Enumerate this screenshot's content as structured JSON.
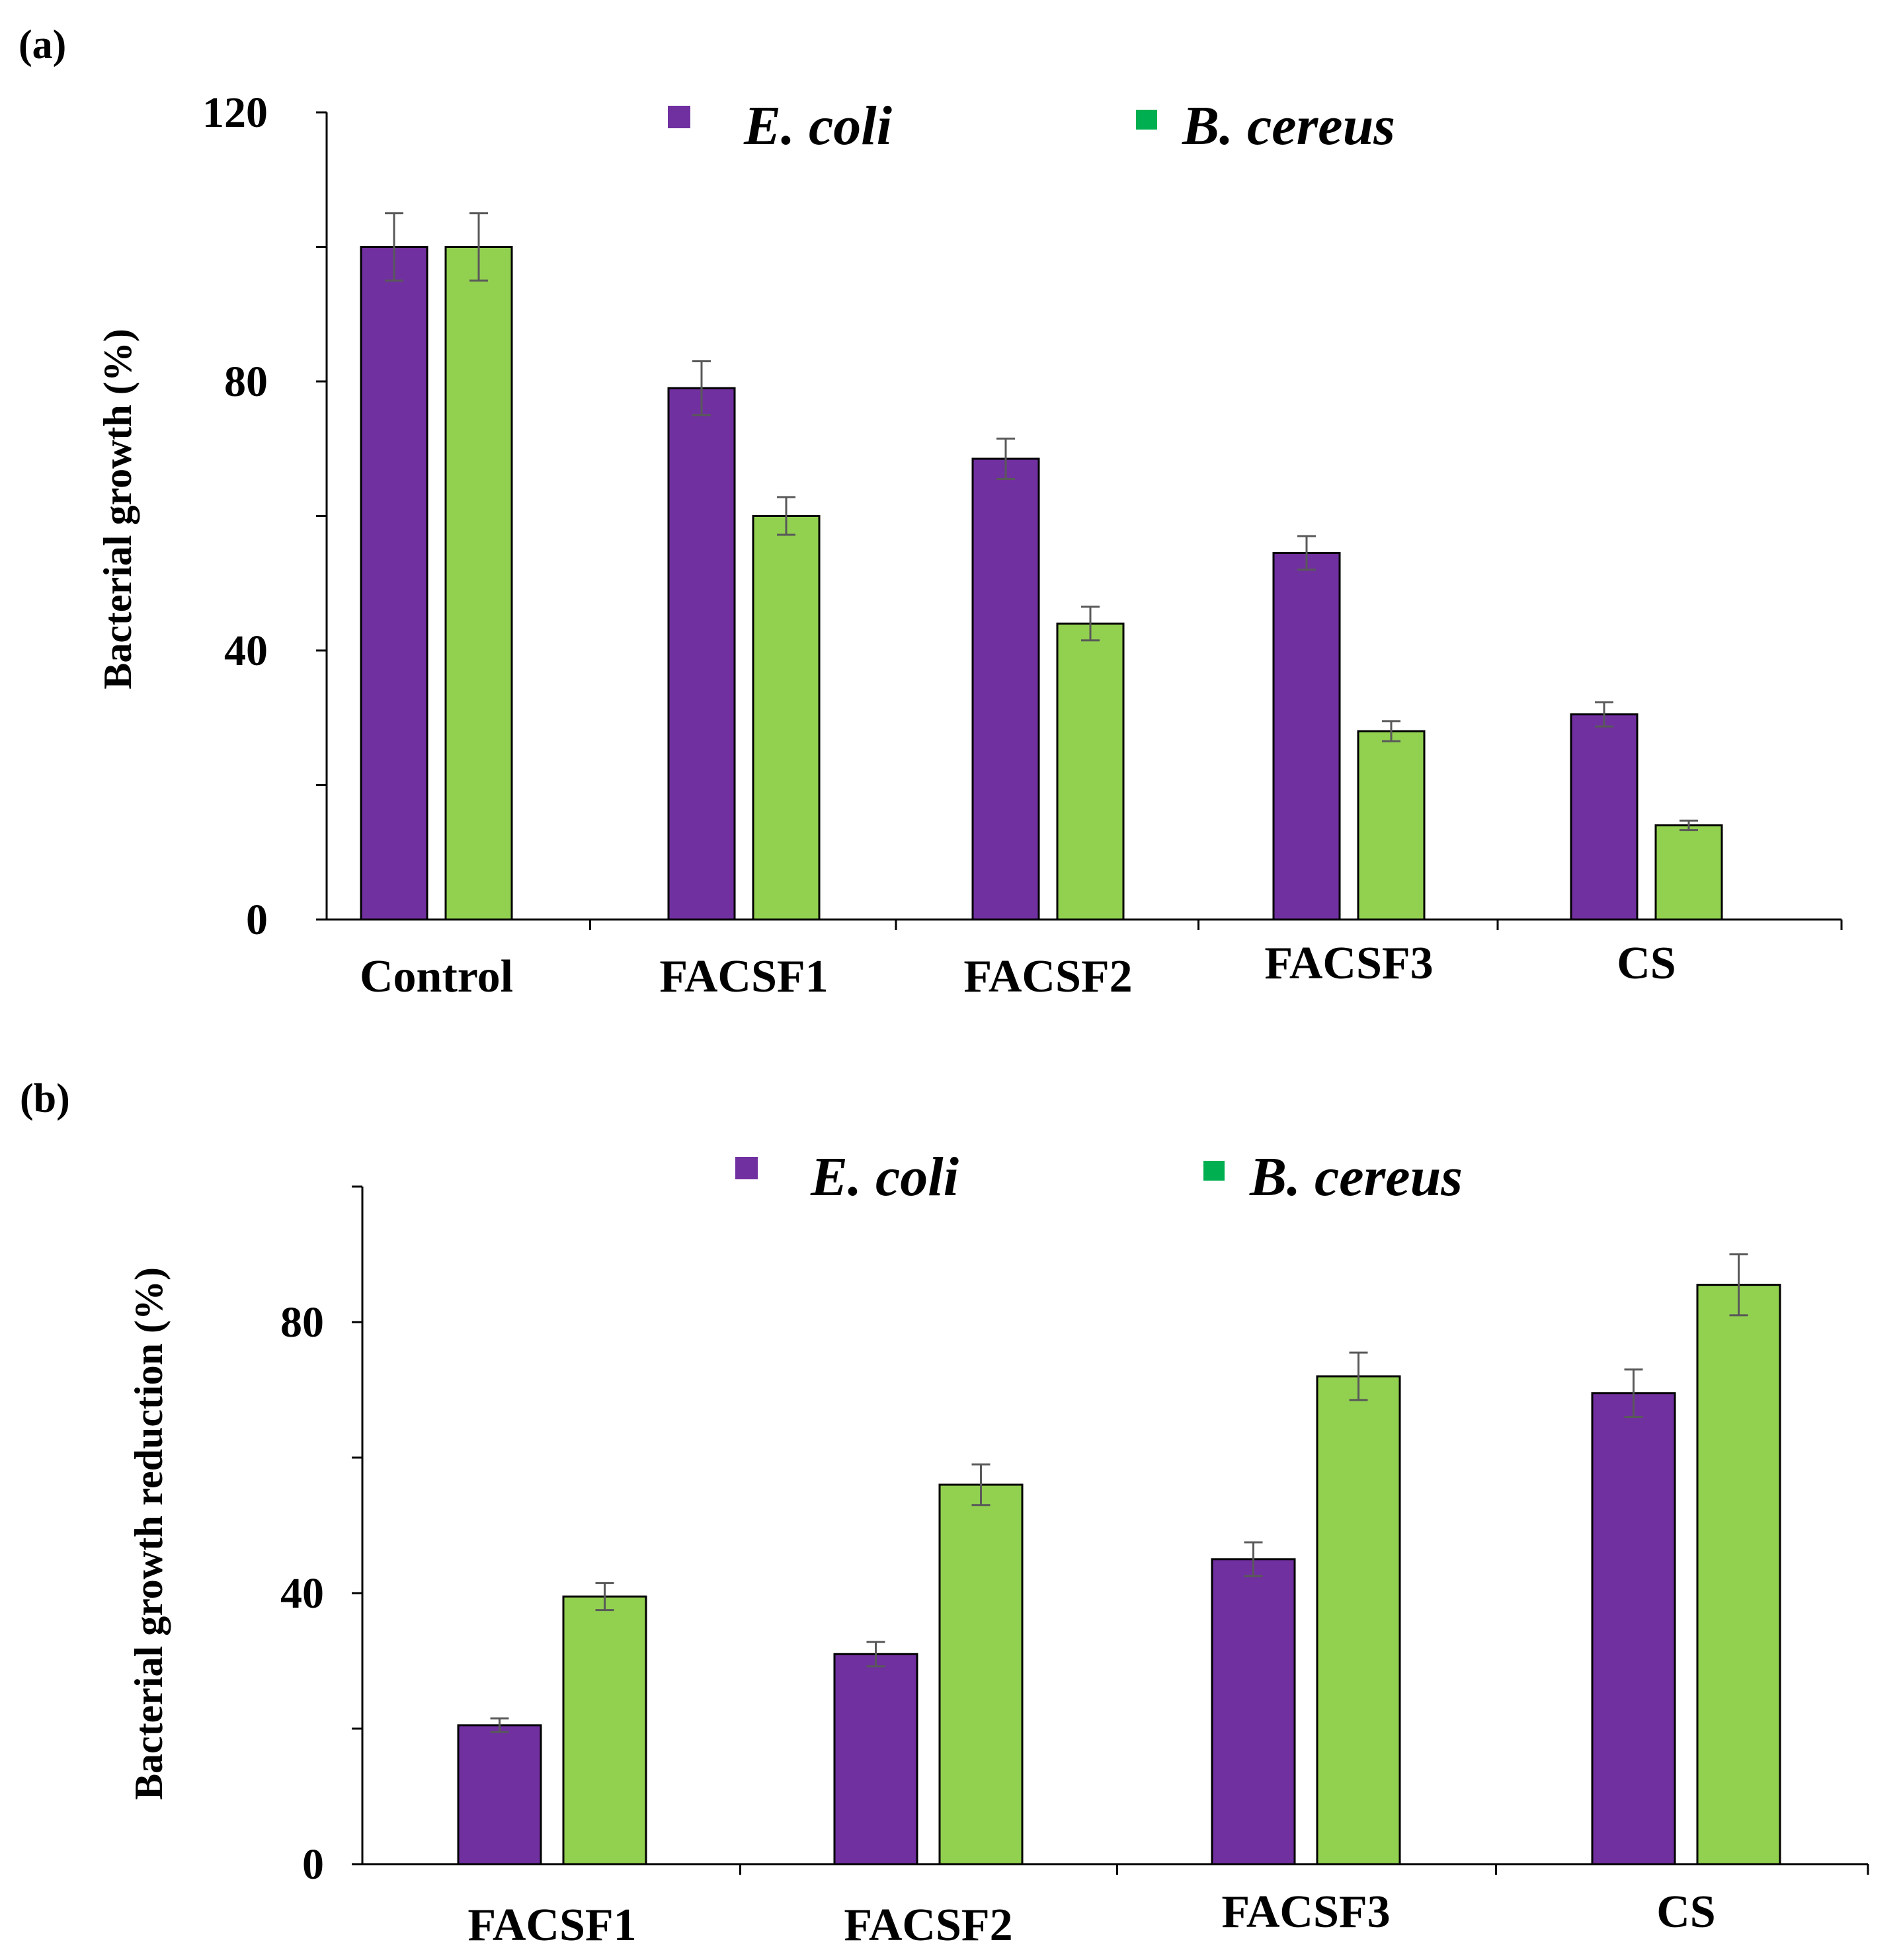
{
  "colors": {
    "ecoli": "#7030a0",
    "bcereus_bar": "#92d050",
    "bcereus_legend": "#00b050",
    "axis": "#000000",
    "error_bar": "#595959"
  },
  "chart_data": [
    {
      "panel_label": "(a)",
      "type": "bar",
      "ylabel": "Bacterial growth (%)",
      "ylim": [
        0,
        120
      ],
      "yticks": [
        0,
        40,
        80,
        120
      ],
      "grid": false,
      "legend_position": "top",
      "categories": [
        "Control",
        "FACSF1",
        "FACSF2",
        "FACSF3",
        "CS"
      ],
      "series": [
        {
          "name": "E. coli",
          "values": [
            100,
            79,
            68.5,
            54.5,
            30.5
          ],
          "errors": [
            5,
            4,
            3,
            2.5,
            1.8
          ]
        },
        {
          "name": "B. cereus",
          "values": [
            100,
            60,
            44,
            28,
            14
          ],
          "errors": [
            5,
            2.8,
            2.5,
            1.5,
            0.7
          ]
        }
      ]
    },
    {
      "panel_label": "(b)",
      "type": "bar",
      "ylabel": "Bacterial growth reduction (%)",
      "ylim": [
        0,
        100
      ],
      "yticks": [
        0,
        40,
        80
      ],
      "grid": false,
      "legend_position": "top",
      "categories": [
        "FACSF1",
        "FACSF2",
        "FACSF3",
        "CS"
      ],
      "series": [
        {
          "name": "E. coli",
          "values": [
            20.5,
            31,
            45,
            69.5
          ],
          "errors": [
            1,
            1.8,
            2.5,
            3.5
          ]
        },
        {
          "name": "B. cereus",
          "values": [
            39.5,
            56,
            72,
            85.5
          ],
          "errors": [
            2,
            3,
            3.5,
            4.5
          ]
        }
      ]
    }
  ]
}
